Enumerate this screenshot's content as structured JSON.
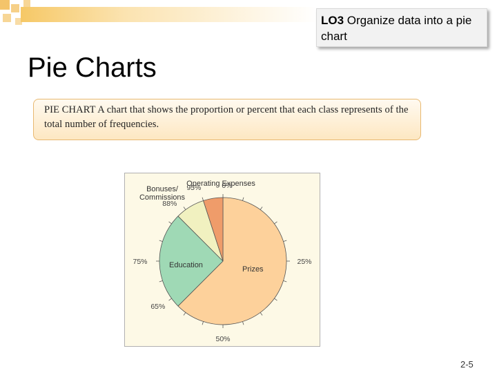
{
  "header": {
    "lo_code": "LO3",
    "lo_text": "Organize data into a pie chart"
  },
  "slide": {
    "title": "Pie Charts",
    "definition_term": "PIE CHART",
    "definition_text": "A chart that shows the proportion or percent that each class represents of the total number of frequencies.",
    "page_number": "2-5"
  },
  "chart_data": {
    "type": "pie",
    "slices": [
      {
        "label": "Prizes",
        "value": 62.5,
        "color": "#fdd19b"
      },
      {
        "label": "Education",
        "value": 25,
        "color": "#9fd9b5"
      },
      {
        "label": "Bonuses/ Commissions",
        "value": 7.5,
        "color": "#f1f1c0"
      },
      {
        "label": "Operating Expenses",
        "value": 5,
        "color": "#ef9c6a"
      }
    ],
    "scale_labels": [
      {
        "label": "0%",
        "percent": 0
      },
      {
        "label": "25%",
        "percent": 25
      },
      {
        "label": "50%",
        "percent": 50
      },
      {
        "label": "65%",
        "percent": 65
      },
      {
        "label": "75%",
        "percent": 75
      },
      {
        "label": "88%",
        "percent": 88
      },
      {
        "label": "95%",
        "percent": 95
      }
    ],
    "tick_step_percent": 5
  }
}
